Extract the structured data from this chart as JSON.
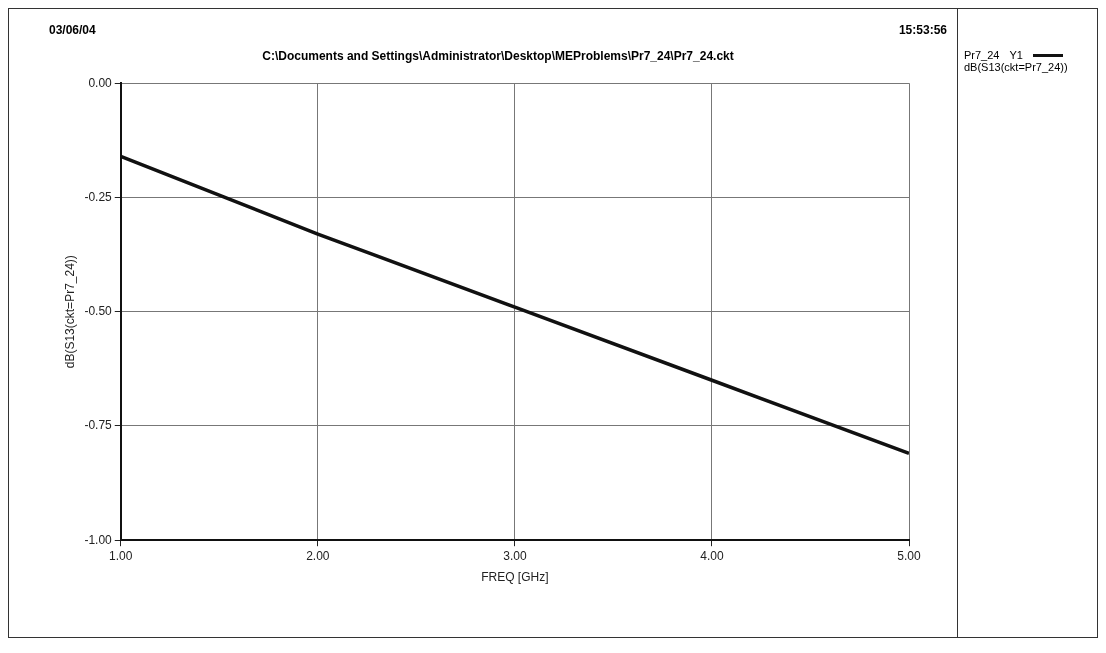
{
  "chart_data": {
    "type": "line",
    "subtitle": "C:\\Documents and Settings\\Administrator\\Desktop\\MEProblems\\Pr7_24\\Pr7_24.ckt",
    "annotations": [
      "03/06/04",
      "15:53:56",
      "Y1"
    ],
    "xlabel": "FREQ [GHz]",
    "ylabel": "dB(S13(ckt=Pr7_24))",
    "legend_title": "Pr7_24",
    "legend": "right",
    "x": [
      1,
      2,
      3,
      4,
      5
    ],
    "series": [
      {
        "name": "dB(S13(ckt=Pr7_24))",
        "color": "#111111",
        "values": [
          -0.16,
          -0.33,
          -0.49,
          -0.65,
          -0.81
        ]
      }
    ],
    "xlim": [
      1,
      5
    ],
    "xticks": [
      {
        "value": 1,
        "label": "1.00"
      },
      {
        "value": 2,
        "label": "2.00"
      },
      {
        "value": 3,
        "label": "3.00"
      },
      {
        "value": 4,
        "label": "4.00"
      },
      {
        "value": 5,
        "label": "5.00"
      }
    ],
    "ylim": [
      -1,
      0
    ],
    "yticks": [
      {
        "value": -1,
        "label": "-1.00"
      },
      {
        "value": -0.75,
        "label": "-0.75"
      },
      {
        "value": -0.5,
        "label": "-0.50"
      },
      {
        "value": -0.25,
        "label": "-0.25"
      },
      {
        "value": 0,
        "label": "0.00"
      }
    ],
    "grid": true,
    "marker": "none",
    "line_style": "solid"
  }
}
